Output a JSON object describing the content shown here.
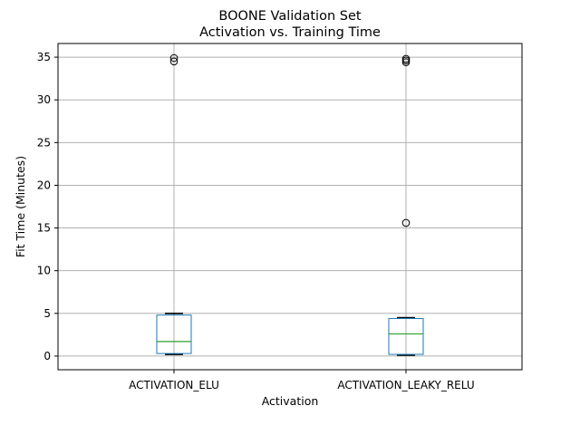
{
  "chart_data": {
    "type": "box",
    "title": "BOONE Validation Set",
    "subtitle": "Activation vs. Training Time",
    "xlabel": "Activation",
    "ylabel": "Fit Time (Minutes)",
    "ylim": [
      -1.6,
      36.6
    ],
    "yticks": [
      0,
      5,
      10,
      15,
      20,
      25,
      30,
      35
    ],
    "grid": true,
    "colors": {
      "box": "#1f77b4",
      "median": "#2ca02c",
      "grid": "#b0b0b0",
      "cap": "#000000",
      "flier": "#000000"
    },
    "categories": [
      "ACTIVATION_ELU",
      "ACTIVATION_LEAKY_RELU"
    ],
    "boxes": [
      {
        "category": "ACTIVATION_ELU",
        "whisker_low": 0.2,
        "q1": 0.3,
        "median": 1.7,
        "q3": 4.8,
        "whisker_high": 5.0,
        "outliers": [
          34.5,
          34.9
        ]
      },
      {
        "category": "ACTIVATION_LEAKY_RELU",
        "whisker_low": 0.1,
        "q1": 0.2,
        "median": 2.6,
        "q3": 4.4,
        "whisker_high": 4.5,
        "outliers": [
          15.6,
          34.4,
          34.6,
          34.8
        ]
      }
    ]
  }
}
